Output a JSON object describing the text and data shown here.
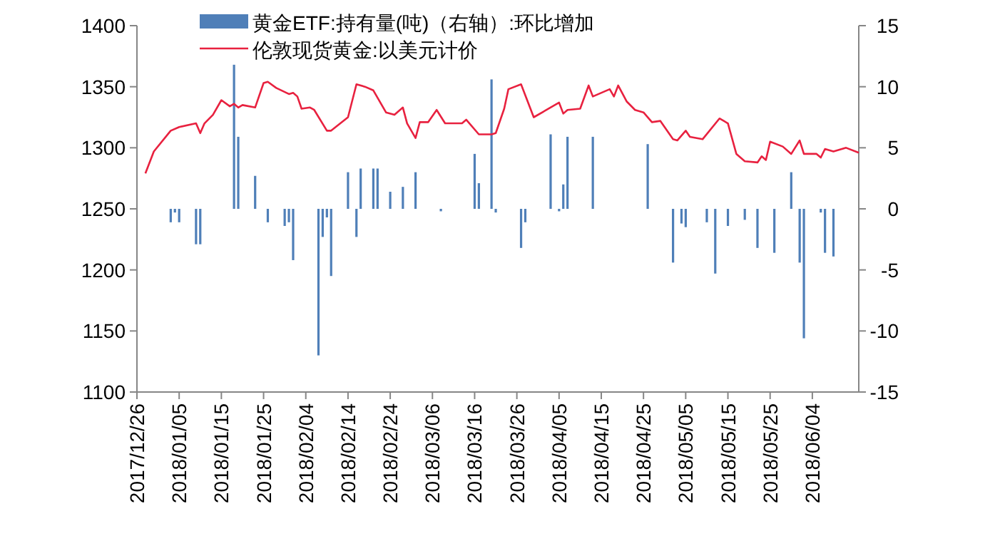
{
  "chart_data": {
    "type": "bar",
    "legend": "top",
    "xlim": [
      "2017-12-26",
      "2018-06-15"
    ],
    "xticks": [
      {
        "value": "2017-12-26",
        "label": "2017/12/26"
      },
      {
        "value": "2018-01-05",
        "label": "2018/01/05"
      },
      {
        "value": "2018-01-15",
        "label": "2018/01/15"
      },
      {
        "value": "2018-01-25",
        "label": "2018/01/25"
      },
      {
        "value": "2018-02-04",
        "label": "2018/02/04"
      },
      {
        "value": "2018-02-14",
        "label": "2018/02/14"
      },
      {
        "value": "2018-02-24",
        "label": "2018/02/24"
      },
      {
        "value": "2018-03-06",
        "label": "2018/03/06"
      },
      {
        "value": "2018-03-16",
        "label": "2018/03/16"
      },
      {
        "value": "2018-03-26",
        "label": "2018/03/26"
      },
      {
        "value": "2018-04-05",
        "label": "2018/04/05"
      },
      {
        "value": "2018-04-15",
        "label": "2018/04/15"
      },
      {
        "value": "2018-04-25",
        "label": "2018/04/25"
      },
      {
        "value": "2018-05-05",
        "label": "2018/05/05"
      },
      {
        "value": "2018-05-15",
        "label": "2018/05/15"
      },
      {
        "value": "2018-05-25",
        "label": "2018/05/25"
      },
      {
        "value": "2018-06-04",
        "label": "2018/06/04"
      }
    ],
    "ylim": [
      1100,
      1400
    ],
    "yticks": [
      1100,
      1150,
      1200,
      1250,
      1300,
      1350,
      1400
    ],
    "y2lim": [
      -15,
      15
    ],
    "y2ticks": [
      -15,
      -10,
      -5,
      0,
      5,
      10,
      15
    ],
    "series": [
      {
        "name": "黄金ETF:持有量(吨)（右轴）:环比增加",
        "axis": "y2",
        "color": "#4f7fb8",
        "x": [
          "2018-01-03",
          "2018-01-04",
          "2018-01-05",
          "2018-01-09",
          "2018-01-10",
          "2018-01-18",
          "2018-01-19",
          "2018-01-23",
          "2018-01-26",
          "2018-01-30",
          "2018-01-31",
          "2018-02-01",
          "2018-02-07",
          "2018-02-08",
          "2018-02-09",
          "2018-02-10",
          "2018-02-14",
          "2018-02-16",
          "2018-02-17",
          "2018-02-20",
          "2018-02-21",
          "2018-02-24",
          "2018-02-27",
          "2018-03-02",
          "2018-03-08",
          "2018-03-16",
          "2018-03-17",
          "2018-03-20",
          "2018-03-21",
          "2018-03-27",
          "2018-03-28",
          "2018-04-03",
          "2018-04-05",
          "2018-04-06",
          "2018-04-07",
          "2018-04-13",
          "2018-04-26",
          "2018-05-02",
          "2018-05-04",
          "2018-05-05",
          "2018-05-10",
          "2018-05-12",
          "2018-05-15",
          "2018-05-19",
          "2018-05-22",
          "2018-05-26",
          "2018-05-30",
          "2018-06-01",
          "2018-06-02",
          "2018-06-06",
          "2018-06-07",
          "2018-06-09"
        ],
        "values": [
          -1.1,
          -0.3,
          -1.1,
          -2.9,
          -2.9,
          11.8,
          5.9,
          2.7,
          -1.1,
          -1.4,
          -1.1,
          -4.2,
          -12.0,
          -2.3,
          -0.7,
          -5.5,
          3.0,
          -2.3,
          3.3,
          3.3,
          3.3,
          1.4,
          1.8,
          3.0,
          -0.2,
          4.5,
          2.1,
          10.6,
          -0.3,
          -3.2,
          -1.1,
          6.1,
          -0.2,
          2.0,
          5.9,
          5.9,
          5.3,
          -4.4,
          -1.2,
          -1.5,
          -1.1,
          -5.3,
          -1.4,
          -0.9,
          -3.2,
          -3.6,
          3.0,
          -4.4,
          -10.6,
          -0.3,
          -3.6,
          -3.9
        ]
      },
      {
        "name": "伦敦现货黄金:以美元计价",
        "type": "line",
        "color": "#e8213f",
        "x": [
          "2017-12-28",
          "2017-12-30",
          "2018-01-03",
          "2018-01-05",
          "2018-01-09",
          "2018-01-10",
          "2018-01-11",
          "2018-01-13",
          "2018-01-15",
          "2018-01-17",
          "2018-01-18",
          "2018-01-19",
          "2018-01-20",
          "2018-01-23",
          "2018-01-25",
          "2018-01-26",
          "2018-01-28",
          "2018-01-31",
          "2018-02-01",
          "2018-02-02",
          "2018-02-03",
          "2018-02-05",
          "2018-02-06",
          "2018-02-09",
          "2018-02-10",
          "2018-02-14",
          "2018-02-16",
          "2018-02-18",
          "2018-02-20",
          "2018-02-23",
          "2018-02-25",
          "2018-02-27",
          "2018-02-28",
          "2018-03-02",
          "2018-03-03",
          "2018-03-05",
          "2018-03-07",
          "2018-03-09",
          "2018-03-13",
          "2018-03-14",
          "2018-03-17",
          "2018-03-20",
          "2018-03-21",
          "2018-03-23",
          "2018-03-24",
          "2018-03-27",
          "2018-03-30",
          "2018-04-05",
          "2018-04-06",
          "2018-04-07",
          "2018-04-10",
          "2018-04-12",
          "2018-04-13",
          "2018-04-17",
          "2018-04-18",
          "2018-04-19",
          "2018-04-21",
          "2018-04-23",
          "2018-04-25",
          "2018-04-27",
          "2018-04-29",
          "2018-05-02",
          "2018-05-03",
          "2018-05-05",
          "2018-05-06",
          "2018-05-09",
          "2018-05-13",
          "2018-05-15",
          "2018-05-17",
          "2018-05-19",
          "2018-05-22",
          "2018-05-23",
          "2018-05-24",
          "2018-05-25",
          "2018-05-28",
          "2018-05-30",
          "2018-06-01",
          "2018-06-02",
          "2018-06-05",
          "2018-06-06",
          "2018-06-07",
          "2018-06-09",
          "2018-06-12",
          "2018-06-15"
        ],
        "values": [
          1279,
          1297,
          1314,
          1317,
          1320,
          1312,
          1320,
          1327,
          1339,
          1334,
          1336,
          1333,
          1335,
          1333,
          1353,
          1354,
          1349,
          1344,
          1345,
          1342,
          1332,
          1333,
          1331,
          1314,
          1314,
          1325,
          1352,
          1350,
          1347,
          1329,
          1327,
          1333,
          1320,
          1308,
          1321,
          1321,
          1331,
          1320,
          1320,
          1323,
          1311,
          1311,
          1312,
          1332,
          1348,
          1352,
          1325,
          1337,
          1328,
          1331,
          1332,
          1351,
          1342,
          1348,
          1342,
          1351,
          1338,
          1331,
          1329,
          1321,
          1322,
          1307,
          1306,
          1314,
          1309,
          1307,
          1324,
          1320,
          1295,
          1289,
          1288,
          1293,
          1290,
          1305,
          1301,
          1295,
          1306,
          1295,
          1295,
          1292,
          1299,
          1297,
          1300,
          1296
        ]
      }
    ]
  }
}
